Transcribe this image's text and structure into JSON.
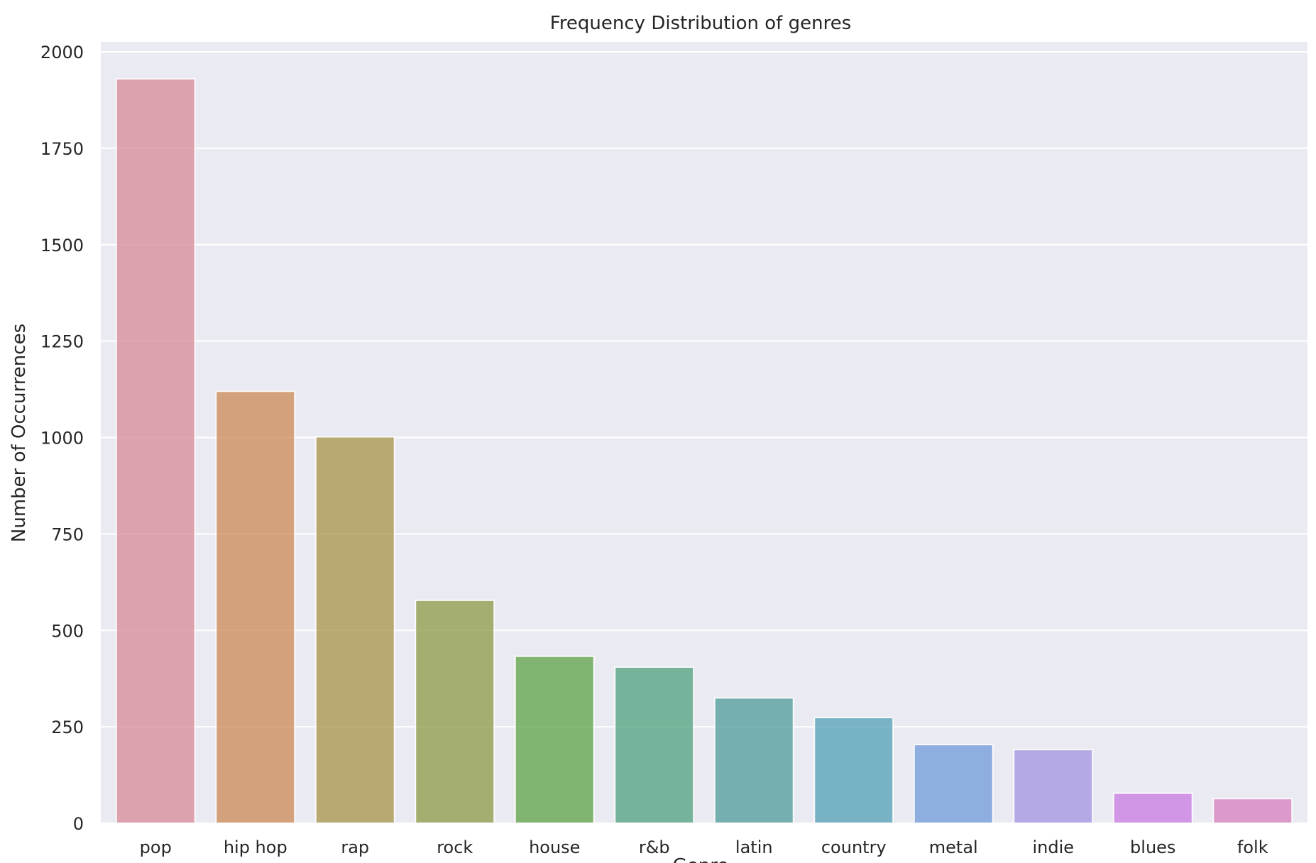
{
  "chart_data": {
    "type": "bar",
    "title": "Frequency Distribution of genres",
    "xlabel": "Genre",
    "ylabel": "Number of Occurrences",
    "ylim": [
      0,
      2000
    ],
    "yticks": [
      0,
      250,
      500,
      750,
      1000,
      1250,
      1500,
      1750,
      2000
    ],
    "grid": true,
    "categories": [
      "pop",
      "hip hop",
      "rap",
      "rock",
      "house",
      "r&b",
      "latin",
      "country",
      "metal",
      "indie",
      "blues",
      "folk"
    ],
    "values": [
      1930,
      1120,
      1002,
      578,
      433,
      405,
      325,
      274,
      204,
      191,
      78,
      64
    ],
    "colors": [
      "#d88a98",
      "#cc8a55",
      "#a89448",
      "#8d9a45",
      "#5ea345",
      "#4ea27f",
      "#4f9c99",
      "#52a0b6",
      "#6f9ad8",
      "#a394e0",
      "#cb7ae2",
      "#d880c0"
    ]
  }
}
